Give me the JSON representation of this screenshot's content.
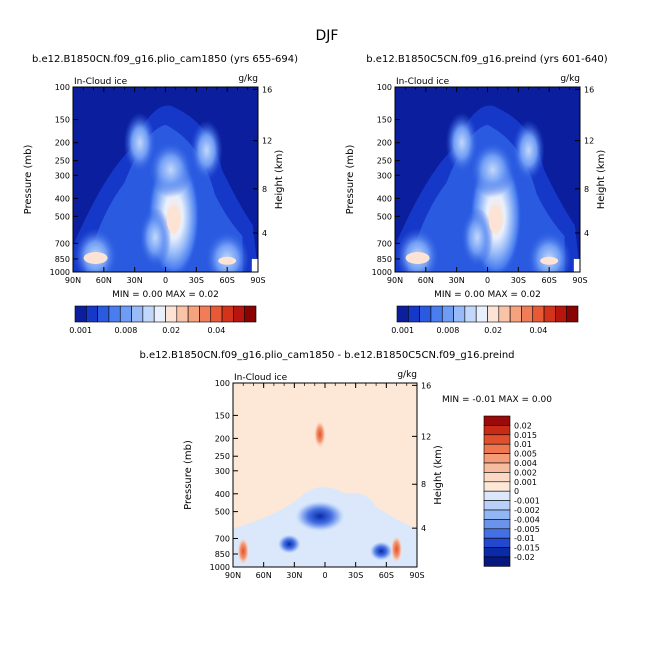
{
  "chart_data": {
    "type": "heatmap",
    "title": "DJF",
    "panels": [
      {
        "id": "p1",
        "title": "b.e12.B1850CN.f09_g16.plio_cam1850 (yrs 655-694)",
        "field": "In-Cloud ice",
        "units": "g/kg",
        "ylabel": "Pressure (mb)",
        "ylabel_right": "Height (km)",
        "xticks": [
          "90N",
          "60N",
          "30N",
          "0",
          "30S",
          "60S",
          "90S"
        ],
        "yticks": [
          "100",
          "150",
          "200",
          "250",
          "300",
          "400",
          "500",
          "700",
          "850",
          "1000"
        ],
        "yticks_right": [
          "16",
          "12",
          "8",
          "4"
        ],
        "stats": "MIN =    0.00  MAX =    0.02",
        "features": [
          {
            "lat": -8,
            "p": 500,
            "value": 0.02
          },
          {
            "lat": -5,
            "p": 280,
            "value": 0.01
          },
          {
            "lat": 25,
            "p": 200,
            "value": 0.006
          },
          {
            "lat": -40,
            "p": 220,
            "value": 0.006
          },
          {
            "lat": 68,
            "p": 820,
            "value": 0.012
          },
          {
            "lat": -60,
            "p": 850,
            "value": 0.01
          },
          {
            "lat": 10,
            "p": 650,
            "value": 0.008
          }
        ]
      },
      {
        "id": "p2",
        "title": "b.e12.B1850C5CN.f09_g16.preind (yrs 601-640)",
        "field": "In-Cloud ice",
        "units": "g/kg",
        "ylabel": "Pressure (mb)",
        "ylabel_right": "Height (km)",
        "xticks": [
          "90N",
          "60N",
          "30N",
          "0",
          "30S",
          "60S",
          "90S"
        ],
        "yticks": [
          "100",
          "150",
          "200",
          "250",
          "300",
          "400",
          "500",
          "700",
          "850",
          "1000"
        ],
        "yticks_right": [
          "16",
          "12",
          "8",
          "4"
        ],
        "stats": "MIN =    0.00  MAX =    0.02",
        "features": [
          {
            "lat": -8,
            "p": 500,
            "value": 0.02
          },
          {
            "lat": -5,
            "p": 280,
            "value": 0.01
          },
          {
            "lat": 25,
            "p": 200,
            "value": 0.006
          },
          {
            "lat": -40,
            "p": 220,
            "value": 0.006
          },
          {
            "lat": 68,
            "p": 820,
            "value": 0.012
          },
          {
            "lat": -60,
            "p": 850,
            "value": 0.01
          },
          {
            "lat": 10,
            "p": 650,
            "value": 0.008
          }
        ]
      },
      {
        "id": "diff",
        "title": "b.e12.B1850CN.f09_g16.plio_cam1850 - b.e12.B1850C5CN.f09_g16.preind",
        "field": "In-Cloud ice",
        "units": "g/kg",
        "ylabel": "Pressure (mb)",
        "ylabel_right": "Height (km)",
        "xticks": [
          "90N",
          "60N",
          "30N",
          "0",
          "30S",
          "60S",
          "90S"
        ],
        "yticks": [
          "100",
          "150",
          "200",
          "250",
          "300",
          "400",
          "500",
          "700",
          "850",
          "1000"
        ],
        "yticks_right": [
          "16",
          "12",
          "8",
          "4"
        ],
        "stats": "MIN =   -0.01  MAX =    0.00",
        "features": [
          {
            "lat": 5,
            "p": 530,
            "value": -0.01
          },
          {
            "lat": -55,
            "p": 820,
            "value": -0.005
          },
          {
            "lat": 35,
            "p": 750,
            "value": -0.004
          },
          {
            "lat": 80,
            "p": 820,
            "value": 0.004
          },
          {
            "lat": -70,
            "p": 800,
            "value": 0.004
          },
          {
            "lat": 5,
            "p": 190,
            "value": 0.002
          }
        ]
      }
    ],
    "colorbar_top": {
      "levels": [
        "0.001",
        "0.008",
        "0.02",
        "0.04"
      ],
      "colors": [
        "#0b1f9e",
        "#1638c8",
        "#2a5ae0",
        "#4a7ef0",
        "#6f9cf5",
        "#98bbf8",
        "#c2d8fb",
        "#e9f0fd",
        "#fde3d3",
        "#f9c3a8",
        "#f5a27f",
        "#f07d57",
        "#e85a35",
        "#d4331b",
        "#b8150e",
        "#8a0303"
      ]
    },
    "colorbar_diff": {
      "labels": [
        "0.02",
        "0.015",
        "0.01",
        "0.005",
        "0.004",
        "0.002",
        "0.001",
        "0",
        "-0.001",
        "-0.002",
        "-0.004",
        "-0.005",
        "-0.01",
        "-0.015",
        "-0.02"
      ],
      "colors": [
        "#9a0a0a",
        "#c72a15",
        "#e0502c",
        "#ee7650",
        "#f49b78",
        "#f7bba0",
        "#fbd9c4",
        "#fde7d6",
        "#dbe8fb",
        "#b9d1f8",
        "#92b5f3",
        "#6b93ec",
        "#4570e3",
        "#2148cf",
        "#0a2aa8",
        "#061880"
      ]
    }
  }
}
